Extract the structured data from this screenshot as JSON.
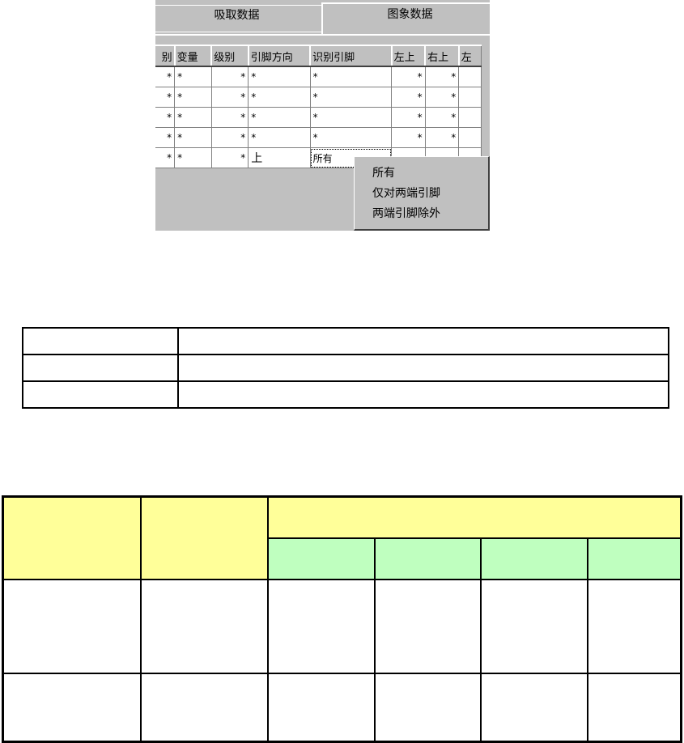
{
  "tabs": [
    {
      "label": "吸取数据",
      "selected": false
    },
    {
      "label": "图象数据",
      "selected": true
    }
  ],
  "grid": {
    "headers": [
      "别",
      "变量",
      "级别",
      "引脚方向",
      "识别引脚",
      "左上",
      "右上",
      "左"
    ],
    "rows": [
      [
        "*",
        "*",
        "*",
        "*",
        "*",
        "*",
        "*",
        ""
      ],
      [
        "*",
        "*",
        "*",
        "*",
        "*",
        "*",
        "*",
        ""
      ],
      [
        "*",
        "*",
        "*",
        "*",
        "*",
        "*",
        "*",
        ""
      ],
      [
        "*",
        "*",
        "*",
        "*",
        "*",
        "*",
        "*",
        ""
      ],
      [
        "*",
        "*",
        "*",
        "上",
        "所有",
        "",
        "",
        ""
      ]
    ]
  },
  "dropdown": {
    "options": [
      "所有",
      "仅对两端引脚",
      "两端引脚除外"
    ]
  },
  "colors": {
    "header_yellow": "#ffff99",
    "header_green": "#bfffbf",
    "window_gray": "#c0c0c0"
  }
}
